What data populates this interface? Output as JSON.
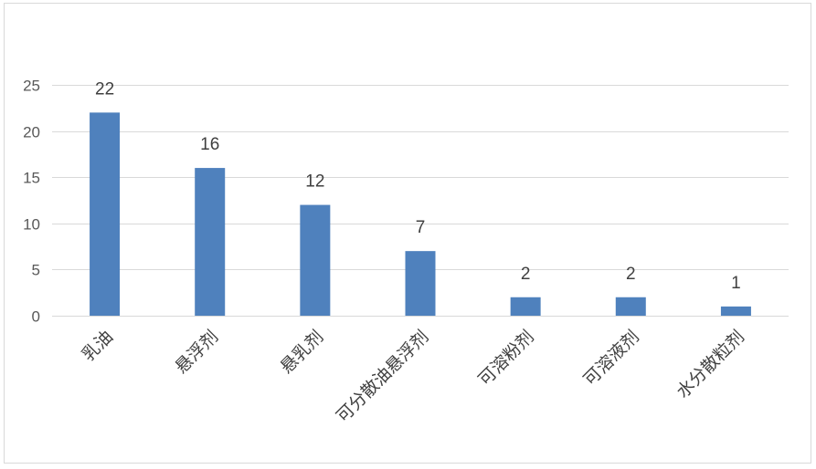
{
  "chart_data": {
    "type": "bar",
    "categories": [
      "乳油",
      "悬浮剂",
      "悬乳剂",
      "可分散油悬浮剂",
      "可溶粉剂",
      "可溶液剂",
      "水分散粒剂"
    ],
    "values": [
      22,
      16,
      12,
      7,
      2,
      2,
      1
    ],
    "title": "",
    "xlabel": "",
    "ylabel": "",
    "ylim": [
      0,
      25
    ],
    "yticks": [
      0,
      5,
      10,
      15,
      20,
      25
    ],
    "grid": true,
    "legend": "none",
    "data_labels": true,
    "bar_color": "#4f81bd",
    "grid_color": "#d9d9d9"
  }
}
